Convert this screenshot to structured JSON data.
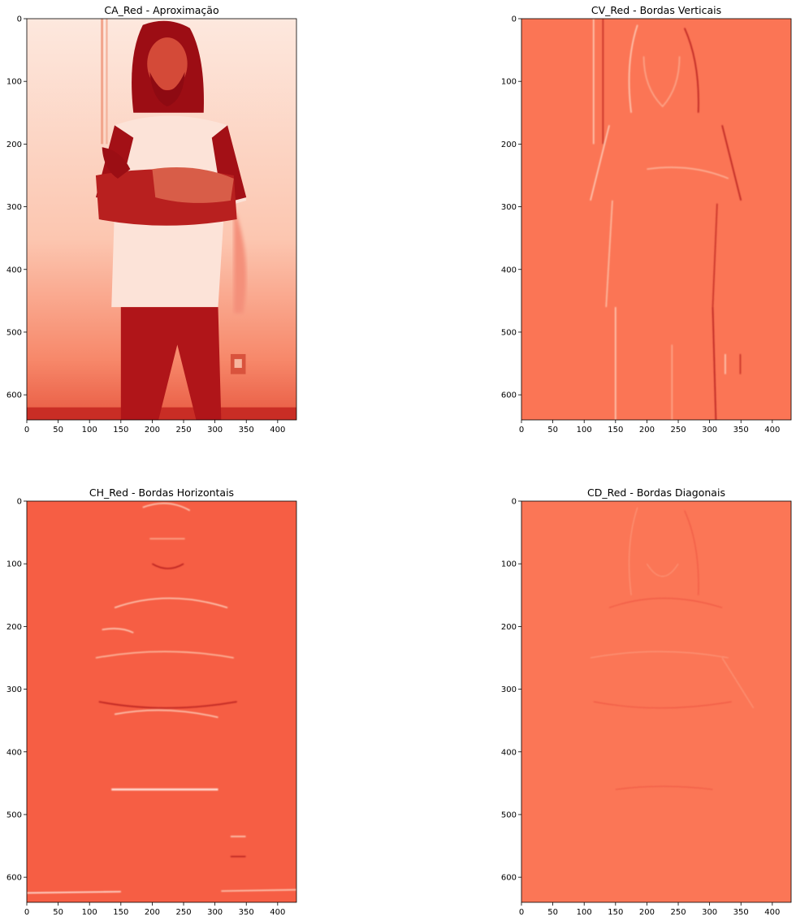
{
  "figure": {
    "panels": [
      {
        "title": "CA_Red - Aproximação",
        "kind": "approximation",
        "xticks": [
          0,
          50,
          100,
          150,
          200,
          250,
          300,
          350,
          400
        ],
        "yticks": [
          0,
          100,
          200,
          300,
          400,
          500,
          600
        ],
        "x_range": [
          0,
          430
        ],
        "y_range": [
          0,
          640
        ],
        "colormap": "Reds"
      },
      {
        "title": "CV_Red - Bordas Verticais",
        "kind": "vertical-edges",
        "xticks": [
          0,
          50,
          100,
          150,
          200,
          250,
          300,
          350,
          400
        ],
        "yticks": [
          0,
          100,
          200,
          300,
          400,
          500,
          600
        ],
        "x_range": [
          0,
          430
        ],
        "y_range": [
          0,
          640
        ],
        "colormap": "Reds"
      },
      {
        "title": "CH_Red - Bordas Horizontais",
        "kind": "horizontal-edges",
        "xticks": [
          0,
          50,
          100,
          150,
          200,
          250,
          300,
          350,
          400
        ],
        "yticks": [
          0,
          100,
          200,
          300,
          400,
          500,
          600
        ],
        "x_range": [
          0,
          430
        ],
        "y_range": [
          0,
          640
        ],
        "colormap": "Reds"
      },
      {
        "title": "CD_Red - Bordas Diagonais",
        "kind": "diagonal-edges",
        "xticks": [
          0,
          50,
          100,
          150,
          200,
          250,
          300,
          350,
          400
        ],
        "yticks": [
          0,
          100,
          200,
          300,
          400,
          500,
          600
        ],
        "x_range": [
          0,
          430
        ],
        "y_range": [
          0,
          640
        ],
        "colormap": "Reds"
      }
    ],
    "colors": {
      "ca_light": "#fde6dc",
      "ca_mid": "#f4866a",
      "ca_dark": "#a50f15",
      "cv_bg": "#fb7555",
      "ch_bg": "#f65e44",
      "cd_bg": "#fb7656",
      "edge_light": "#fdd0bc",
      "edge_dark": "#b51a1c"
    }
  }
}
